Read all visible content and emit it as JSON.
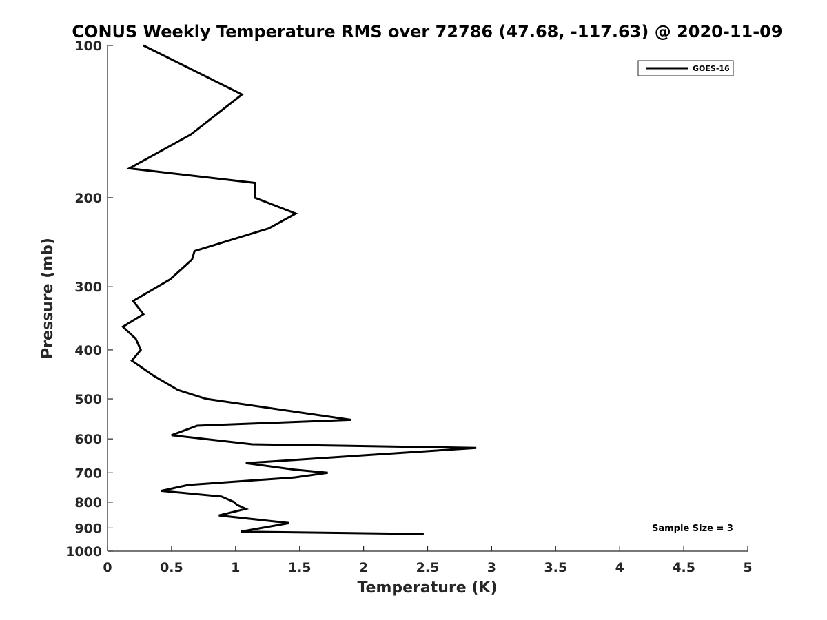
{
  "chart_data": {
    "type": "line",
    "title": "CONUS Weekly Temperature RMS over 72786 (47.68, -117.63) @ 2020-11-09",
    "xlabel": "Temperature (K)",
    "ylabel": "Pressure (mb)",
    "xlim": [
      0,
      5
    ],
    "ylim": [
      100,
      1000
    ],
    "yscale": "log",
    "yreversed": true,
    "xticks": [
      0,
      0.5,
      1,
      1.5,
      2,
      2.5,
      3,
      3.5,
      4,
      4.5,
      5
    ],
    "xtick_labels": [
      "0",
      "0.5",
      "1",
      "1.5",
      "2",
      "2.5",
      "3",
      "3.5",
      "4",
      "4.5",
      "5"
    ],
    "yticks": [
      100,
      200,
      300,
      400,
      500,
      600,
      700,
      800,
      900,
      1000
    ],
    "ytick_labels": [
      "100",
      "200",
      "300",
      "400",
      "500",
      "600",
      "700",
      "800",
      "900",
      "1000"
    ],
    "legend": {
      "location": "top-right",
      "entries": [
        "GOES-16"
      ]
    },
    "annotation": "Sample Size = 3",
    "grid": false,
    "series": [
      {
        "name": "GOES-16",
        "color": "#000000",
        "temperature": [
          0.28,
          1.05,
          0.65,
          0.17,
          1.15,
          1.15,
          1.47,
          1.26,
          0.68,
          0.66,
          0.49,
          0.2,
          0.28,
          0.12,
          0.22,
          0.26,
          0.19,
          0.36,
          0.55,
          0.77,
          1.9,
          0.7,
          0.5,
          1.13,
          2.88,
          1.08,
          1.46,
          1.72,
          1.46,
          0.63,
          0.42,
          0.89,
          0.99,
          1.01,
          1.08,
          0.87,
          1.42,
          1.04,
          2.47
        ],
        "pressure": [
          100,
          125,
          150,
          175,
          187,
          200,
          215,
          230,
          255,
          265,
          290,
          320,
          340,
          360,
          380,
          400,
          420,
          450,
          480,
          500,
          550,
          565,
          590,
          615,
          625,
          670,
          690,
          700,
          715,
          740,
          760,
          780,
          800,
          810,
          825,
          850,
          880,
          915,
          925
        ]
      }
    ]
  }
}
